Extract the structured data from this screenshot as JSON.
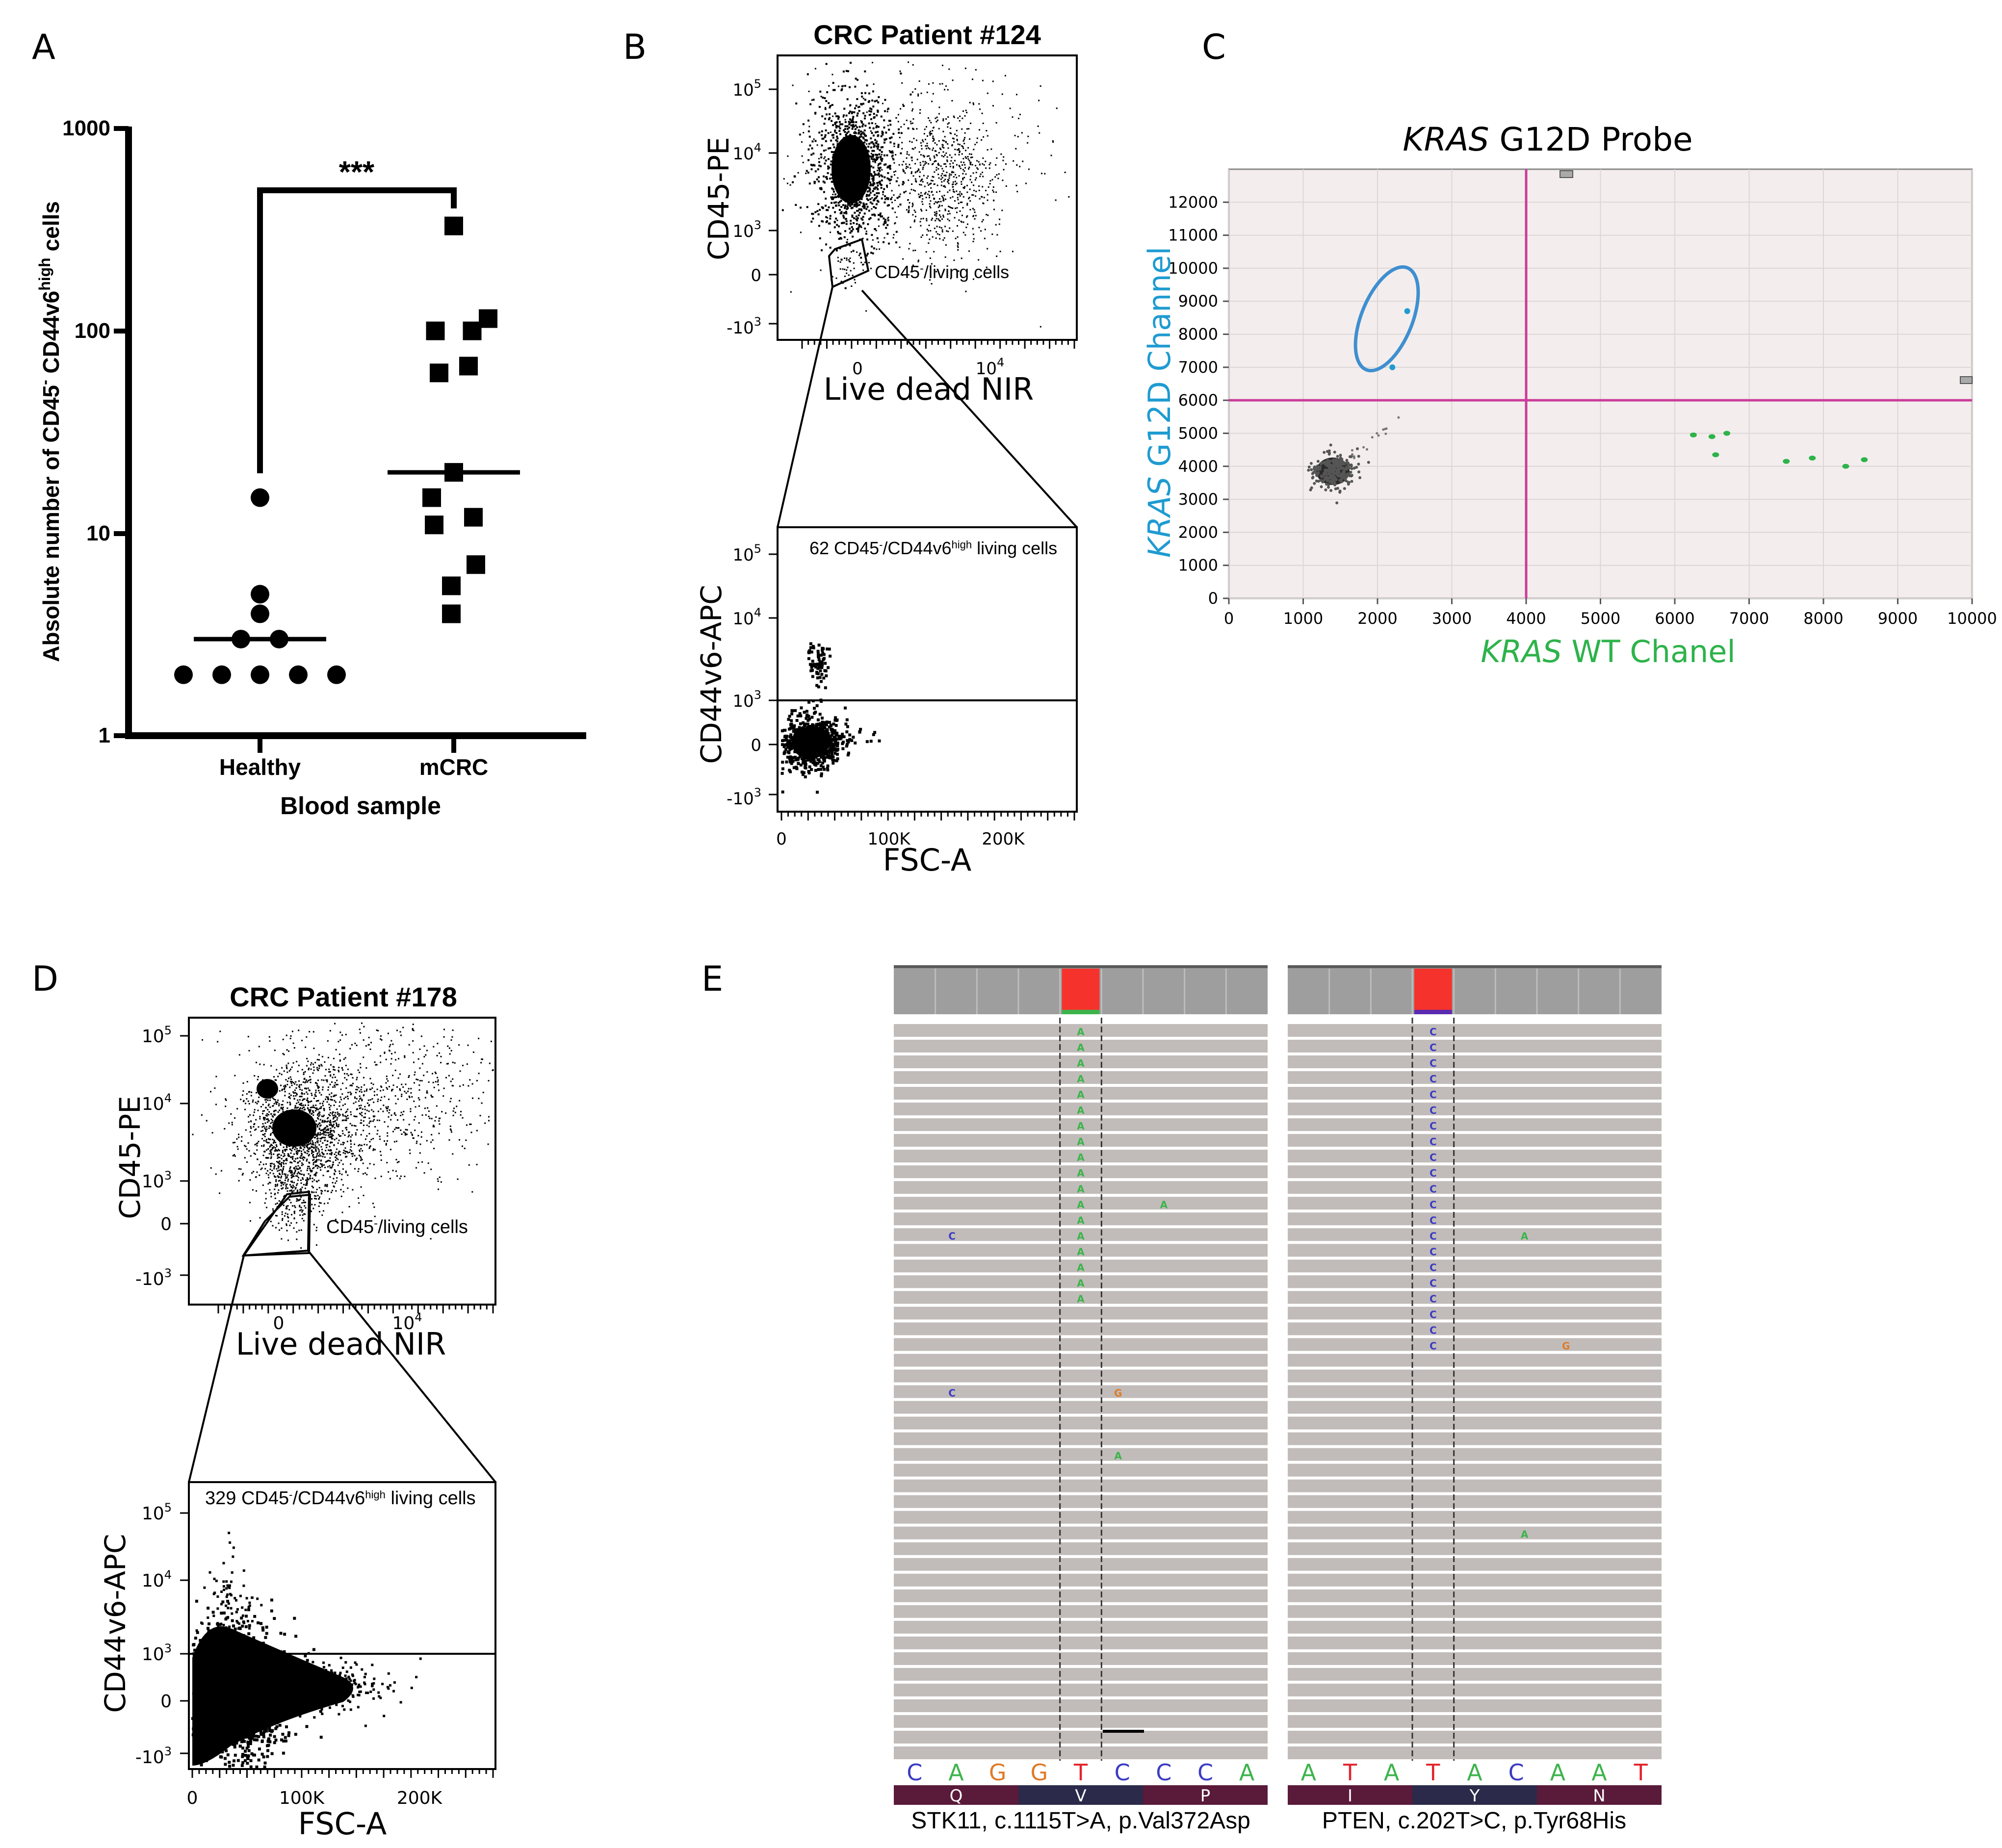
{
  "chart_data": [
    {
      "panel": "A",
      "type": "scatter",
      "title": "",
      "ylabel_parts": [
        "Absolute number of CD45",
        "-",
        " CD44v6",
        "high",
        " cells"
      ],
      "xlabel": "Blood sample",
      "yscale": "log",
      "ylim": [
        1,
        1000
      ],
      "y_ticks": [
        "1",
        "10",
        "100",
        "1000"
      ],
      "categories": [
        "Healthy",
        "mCRC"
      ],
      "significance": "***",
      "series": [
        {
          "name": "Healthy",
          "marker": "circle",
          "median": 3,
          "values": [
            15,
            5,
            4,
            3,
            3,
            2,
            2,
            2,
            2,
            2
          ]
        },
        {
          "name": "mCRC",
          "marker": "square",
          "median": 20,
          "values": [
            330,
            115,
            100,
            100,
            67,
            62,
            20,
            15,
            12,
            11,
            7,
            5.5,
            4
          ]
        }
      ]
    },
    {
      "panel": "B",
      "type": "scatter",
      "title": "CRC Patient #124",
      "top_plot": {
        "xlabel": "Live dead NIR",
        "ylabel": "CD45-PE",
        "x_ticks": [
          "0",
          "10^4"
        ],
        "y_ticks": [
          "10^5",
          "10^4",
          "10^3",
          "0",
          "-10^3"
        ],
        "gate_label": "CD45-/living cells"
      },
      "bottom_plot": {
        "xlabel": "FSC-A",
        "ylabel": "CD44v6-APC",
        "x_ticks": [
          "0",
          "100K",
          "200K"
        ],
        "y_ticks": [
          "10^5",
          "10^4",
          "10^3",
          "0",
          "-10^3"
        ],
        "gate_label": "62 CD45-/CD44v6high living cells",
        "gate_count": 62
      }
    },
    {
      "panel": "C",
      "type": "scatter",
      "title": "KRAS G12D Probe",
      "xlabel": "KRAS WT Chanel",
      "ylabel": "KRAS G12D Channel",
      "xlim": [
        0,
        10000
      ],
      "ylim": [
        0,
        13000
      ],
      "x_ticks": [
        0,
        1000,
        2000,
        3000,
        4000,
        5000,
        6000,
        7000,
        8000,
        9000,
        10000
      ],
      "y_ticks": [
        0,
        1000,
        2000,
        3000,
        4000,
        5000,
        6000,
        7000,
        8000,
        9000,
        10000,
        11000,
        12000
      ],
      "x_threshold": 4000,
      "y_threshold": 6000,
      "g12d_positive_points": [
        {
          "x": 2200,
          "y": 7000
        },
        {
          "x": 2400,
          "y": 8700
        }
      ],
      "wt_positive_points": [
        {
          "x": 6250,
          "y": 4950
        },
        {
          "x": 6500,
          "y": 4900
        },
        {
          "x": 6700,
          "y": 5000
        },
        {
          "x": 6550,
          "y": 4350
        },
        {
          "x": 7500,
          "y": 4150
        },
        {
          "x": 7850,
          "y": 4250
        },
        {
          "x": 8300,
          "y": 4000
        },
        {
          "x": 8550,
          "y": 4200
        }
      ],
      "negative_cluster_center": {
        "x": 1400,
        "y": 3850
      },
      "colors": {
        "g12d": "#1f9bd1",
        "wt": "#2db34a",
        "threshold": "#cc3c9a"
      }
    },
    {
      "panel": "D",
      "type": "scatter",
      "title": "CRC Patient #178",
      "top_plot": {
        "xlabel": "Live dead NIR",
        "ylabel": "CD45-PE",
        "x_ticks": [
          "0",
          "10^4"
        ],
        "y_ticks": [
          "10^5",
          "10^4",
          "10^3",
          "0",
          "-10^3"
        ],
        "gate_label": "CD45-/living cells"
      },
      "bottom_plot": {
        "xlabel": "FSC-A",
        "ylabel": "CD44v6-APC",
        "x_ticks": [
          "0",
          "100K",
          "200K"
        ],
        "y_ticks": [
          "10^5",
          "10^4",
          "10^3",
          "0",
          "-10^3"
        ],
        "gate_label": "329 CD45-/CD44v6high living cells",
        "gate_count": 329
      }
    },
    {
      "panel": "E",
      "type": "table",
      "tracks": [
        {
          "gene": "STK11",
          "caption": "STK11, c.1115T>A, p.Val372Asp",
          "reference": [
            "C",
            "A",
            "G",
            "G",
            "T",
            "C",
            "C",
            "C",
            "A"
          ],
          "amino_acids": [
            "Q",
            "V",
            "P"
          ],
          "variant_base": "A"
        },
        {
          "gene": "PTEN",
          "caption": "PTEN, c.202T>C, p.Tyr68His",
          "reference": [
            "A",
            "T",
            "A",
            "T",
            "A",
            "C",
            "A",
            "A",
            "T"
          ],
          "amino_acids": [
            "I",
            "Y",
            "N"
          ],
          "variant_base": "C"
        }
      ]
    }
  ],
  "panel_letters": [
    "A",
    "B",
    "C",
    "D",
    "E"
  ],
  "texts": {
    "A": {
      "y_tick_1000": "1000",
      "y_tick_100": "100",
      "y_tick_10": "10",
      "y_tick_1": "1",
      "x_tick_healthy": "Healthy",
      "x_tick_mcrc": "mCRC",
      "xlabel": "Blood sample",
      "stars": "***",
      "ylabel_a": "Absolute number of CD45",
      "ylabel_sup1": "-",
      "ylabel_b": " CD44v6",
      "ylabel_sup2": "high",
      "ylabel_c": " cells"
    },
    "B": {
      "title": "CRC Patient #124",
      "top_ylabel": "CD45-PE",
      "top_xlabel": "Live dead NIR",
      "y_10": "10",
      "y_exp5": "5",
      "y_exp4": "4",
      "y_exp3": "3",
      "y_zero": "0",
      "y_neg10": "-10",
      "y_negexp": "3",
      "x_zero": "0",
      "x_10": "10",
      "x_exp4": "4",
      "gate_a": "CD45",
      "gate_sup": "-",
      "gate_b": "/living cells",
      "bot_ylabel": "CD44v6-APC",
      "bot_xlabel": "FSC-A",
      "bx_0": "0",
      "bx_100k": "100K",
      "bx_200k": "200K",
      "bgate_a": "62 CD45",
      "bgate_sup": "-",
      "bgate_b": "/CD44v6",
      "bgate_sup2": "high",
      "bgate_c": " living cells"
    },
    "C": {
      "title_italic": "KRAS",
      "title_rest": " G12D Probe",
      "xlabel_italic": "KRAS",
      "xlabel_rest": " WT Chanel",
      "ylabel_italic": "KRAS",
      "ylabel_rest": " G12D Channel"
    },
    "D": {
      "title": "CRC Patient #178",
      "gate_a": "CD45",
      "gate_sup": "-",
      "gate_b": "/living cells",
      "bgate_a": "329 CD45",
      "bgate_sup": "-",
      "bgate_b": "/CD44v6",
      "bgate_sup2": "high",
      "bgate_c": " living cells"
    },
    "E": {
      "stk11_caption": "STK11, c.1115T>A, p.Val372Asp",
      "pten_caption": "PTEN, c.202T>C, p.Tyr68His"
    }
  }
}
